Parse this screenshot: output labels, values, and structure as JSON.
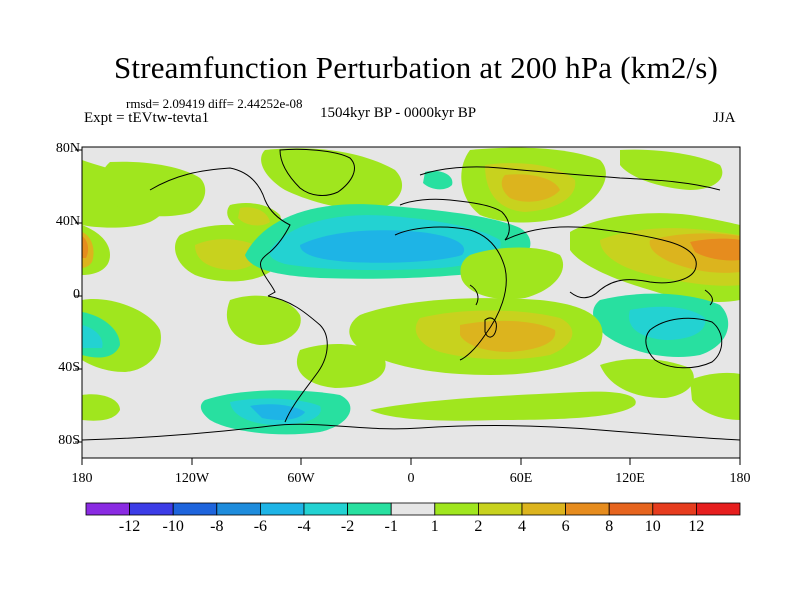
{
  "title": "Streamfunction Perturbation at 200 hPa (km2/s)",
  "stats": "rmsd= 2.09419 diff= 2.44252e-08",
  "expt": "Expt = tEVtw-tevta1",
  "period": "1504kyr BP - 0000kyr BP",
  "season": "JJA",
  "lat_labels": [
    "80N",
    "40N",
    "0",
    "40S",
    "80S"
  ],
  "lon_labels": [
    "180",
    "120W",
    "60W",
    "0",
    "60E",
    "120E",
    "180"
  ],
  "colorbar": {
    "labels": [
      "-12",
      "-10",
      "-8",
      "-6",
      "-4",
      "-2",
      "-1",
      "1",
      "2",
      "4",
      "6",
      "8",
      "10",
      "12"
    ],
    "colors": [
      "#8a2be2",
      "#3c3ce6",
      "#1e64dc",
      "#1e8cdc",
      "#1eb4e6",
      "#23d2d2",
      "#28e0a0",
      "#e6e6e6",
      "#a0e61e",
      "#c8d21e",
      "#dcb41e",
      "#e68c1e",
      "#e6641e",
      "#e63c1e",
      "#e61e1e"
    ]
  },
  "map_colors": {
    "neutral": "#e6e6e6",
    "green": "#a0e61e",
    "yellow": "#c8d21e",
    "orange": "#dcb41e",
    "dark_orange": "#e68c1e",
    "teal": "#28e0a0",
    "cyan": "#23d2d2",
    "blue": "#1eb4e6"
  }
}
